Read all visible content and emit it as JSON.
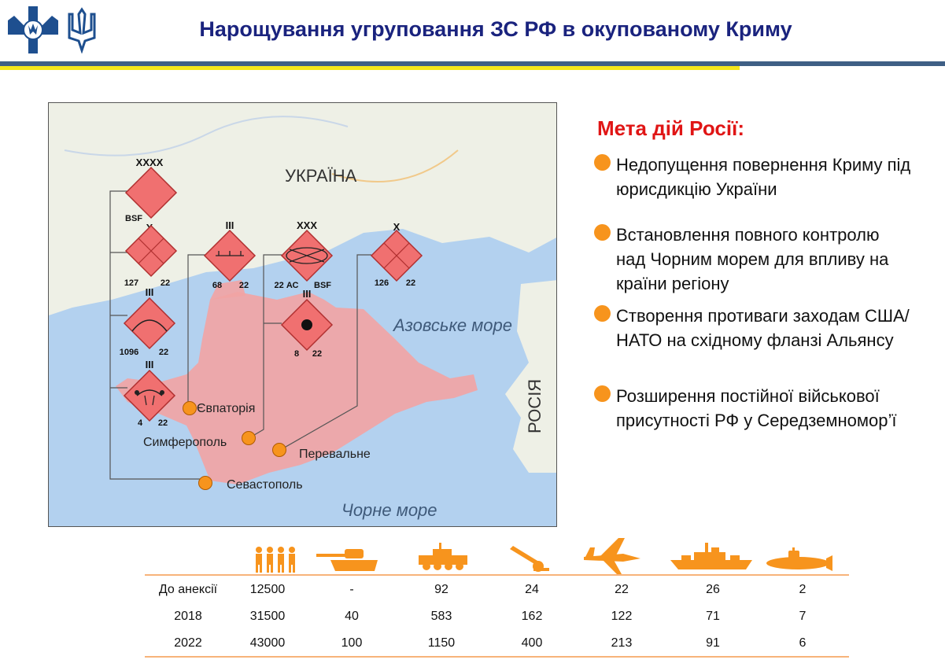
{
  "title": "Нарощування угруповання ЗС РФ в окупованому Криму",
  "logos": [
    "armed-forces-emblem",
    "trident-emblem"
  ],
  "map": {
    "country_labels": {
      "ukraine": "УКРАЇНА",
      "russia": "РОСІЯ"
    },
    "seas": {
      "azov": "Азовське море",
      "black": "Чорне море"
    },
    "cities": {
      "yevpatoria": "Євпаторія",
      "simferopol": "Симферополь",
      "perevalne": "Перевальне",
      "sevastopol": "Севастополь"
    },
    "units": [
      {
        "echelon": "XXXX",
        "left_label": "BSF",
        "right_label": ""
      },
      {
        "echelon": "X",
        "left_label": "127",
        "right_label": "22"
      },
      {
        "echelon": "III",
        "left_label": "1096",
        "right_label": "22"
      },
      {
        "echelon": "III",
        "left_label": "4",
        "right_label": "22"
      },
      {
        "echelon": "III",
        "left_label": "68",
        "right_label": "22"
      },
      {
        "echelon": "XXX",
        "left_label": "22 АС",
        "right_label": "BSF"
      },
      {
        "echelon": "III",
        "left_label": "8",
        "right_label": "22"
      },
      {
        "echelon": "X",
        "left_label": "126",
        "right_label": "22"
      }
    ],
    "colors": {
      "unit_fill": "#f07070",
      "unit_stroke": "#b03030",
      "occupied": "#f2a3a3",
      "city_dot": "#f7941d"
    }
  },
  "goals": {
    "title": "Мета дій Росії:",
    "items": [
      "Недопущення повернення Криму під юрисдикцію України",
      "Встановлення повного контролю над Чорним морем для впливу на країни регіону",
      "Створення противаги заходам США/НАТО на східному фланзі Альянсу",
      "Розширення постійної військової присутності РФ у Середземномор’ї"
    ]
  },
  "table": {
    "icons": [
      "personnel-icon",
      "tank-icon",
      "armored-vehicle-icon",
      "artillery-icon",
      "aircraft-icon",
      "warship-icon",
      "submarine-icon"
    ],
    "rows": [
      {
        "label": "До анексії",
        "values": [
          "12500",
          "-",
          "92",
          "24",
          "22",
          "26",
          "2"
        ]
      },
      {
        "label": "2018",
        "values": [
          "31500",
          "40",
          "583",
          "162",
          "122",
          "71",
          "7"
        ]
      },
      {
        "label": "2022",
        "values": [
          "43000",
          "100",
          "1150",
          "400",
          "213",
          "91",
          "6"
        ]
      }
    ],
    "icon_color": "#f7941d"
  }
}
